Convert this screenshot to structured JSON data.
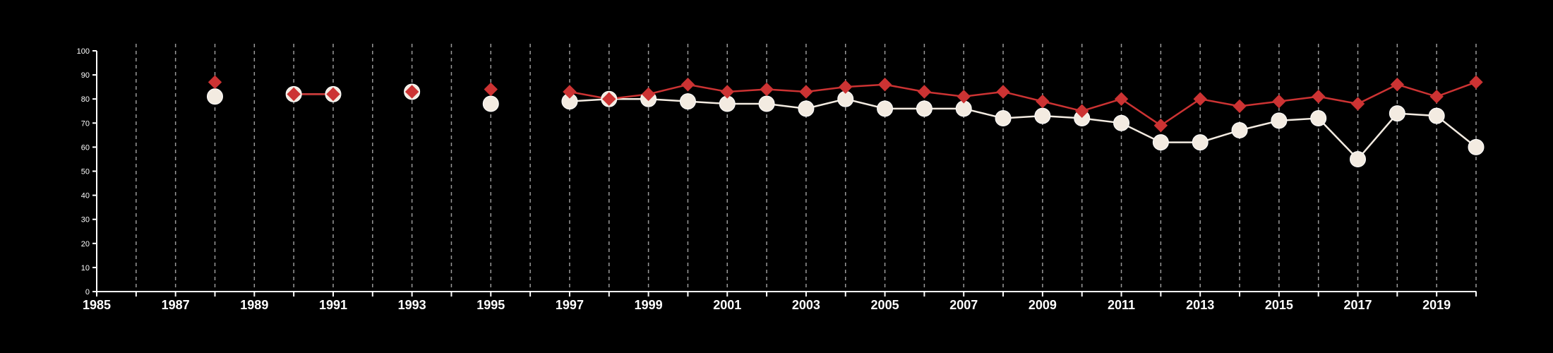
{
  "chart_data": {
    "type": "line",
    "title": "",
    "xlabel": "",
    "ylabel": "",
    "xlim": [
      1985,
      2020
    ],
    "ylim": [
      0,
      100
    ],
    "yticks": [
      0,
      10,
      20,
      30,
      40,
      50,
      60,
      70,
      80,
      90,
      100
    ],
    "xtick_labels": [
      "1985",
      "1987",
      "1989",
      "1991",
      "1993",
      "1995",
      "1997",
      "1999",
      "2001",
      "2003",
      "2005",
      "2007",
      "2009",
      "2011",
      "2013",
      "2015",
      "2017",
      "2019"
    ],
    "grid": "vertical dashed lines at each year",
    "background": "#000000",
    "series": [
      {
        "marker": "diamond",
        "color": "#cc3333",
        "points": [
          {
            "x": 1988,
            "y": 87
          },
          {
            "x": 1990,
            "y": 82
          },
          {
            "x": 1991,
            "y": 82
          },
          {
            "x": 1993,
            "y": 83
          },
          {
            "x": 1995,
            "y": 84
          },
          {
            "x": 1997,
            "y": 83
          },
          {
            "x": 1998,
            "y": 80
          },
          {
            "x": 1999,
            "y": 82
          },
          {
            "x": 2000,
            "y": 86
          },
          {
            "x": 2001,
            "y": 83
          },
          {
            "x": 2002,
            "y": 84
          },
          {
            "x": 2003,
            "y": 83
          },
          {
            "x": 2004,
            "y": 85
          },
          {
            "x": 2005,
            "y": 86
          },
          {
            "x": 2006,
            "y": 83
          },
          {
            "x": 2007,
            "y": 81
          },
          {
            "x": 2008,
            "y": 83
          },
          {
            "x": 2009,
            "y": 79
          },
          {
            "x": 2010,
            "y": 75
          },
          {
            "x": 2011,
            "y": 80
          },
          {
            "x": 2012,
            "y": 69
          },
          {
            "x": 2013,
            "y": 80
          },
          {
            "x": 2014,
            "y": 77
          },
          {
            "x": 2015,
            "y": 79
          },
          {
            "x": 2016,
            "y": 81
          },
          {
            "x": 2017,
            "y": 78
          },
          {
            "x": 2018,
            "y": 86
          },
          {
            "x": 2019,
            "y": 81
          },
          {
            "x": 2020,
            "y": 87
          }
        ]
      },
      {
        "marker": "circle",
        "color": "#f3ebe1",
        "points": [
          {
            "x": 1988,
            "y": 81
          },
          {
            "x": 1990,
            "y": 82
          },
          {
            "x": 1991,
            "y": 82
          },
          {
            "x": 1993,
            "y": 83
          },
          {
            "x": 1995,
            "y": 78
          },
          {
            "x": 1997,
            "y": 79
          },
          {
            "x": 1998,
            "y": 80
          },
          {
            "x": 1999,
            "y": 80
          },
          {
            "x": 2000,
            "y": 79
          },
          {
            "x": 2001,
            "y": 78
          },
          {
            "x": 2002,
            "y": 78
          },
          {
            "x": 2003,
            "y": 76
          },
          {
            "x": 2004,
            "y": 80
          },
          {
            "x": 2005,
            "y": 76
          },
          {
            "x": 2006,
            "y": 76
          },
          {
            "x": 2007,
            "y": 76
          },
          {
            "x": 2008,
            "y": 72
          },
          {
            "x": 2009,
            "y": 73
          },
          {
            "x": 2010,
            "y": 72
          },
          {
            "x": 2011,
            "y": 70
          },
          {
            "x": 2012,
            "y": 62
          },
          {
            "x": 2013,
            "y": 62
          },
          {
            "x": 2014,
            "y": 67
          },
          {
            "x": 2015,
            "y": 71
          },
          {
            "x": 2016,
            "y": 72
          },
          {
            "x": 2017,
            "y": 55
          },
          {
            "x": 2018,
            "y": 74
          },
          {
            "x": 2019,
            "y": 73
          },
          {
            "x": 2020,
            "y": 60
          }
        ]
      }
    ]
  }
}
